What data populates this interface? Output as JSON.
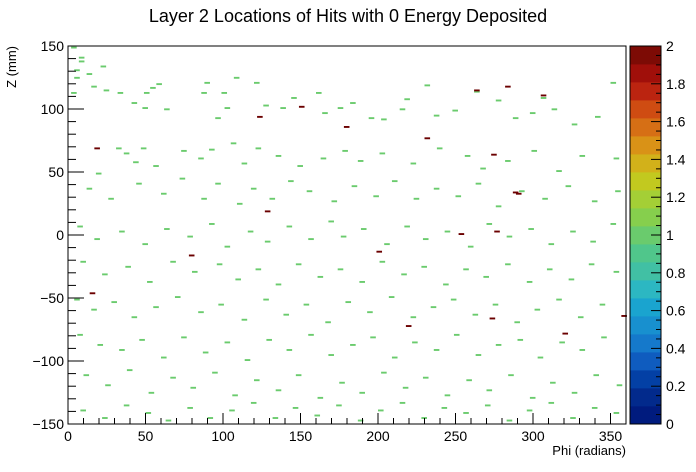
{
  "chart_data": {
    "type": "heatmap",
    "title": "Layer 2 Locations of Hits with 0 Energy Deposited",
    "xlabel": "Phi (radians)",
    "ylabel": "Z (mm)",
    "xlim": [
      0,
      360
    ],
    "ylim": [
      -150,
      150
    ],
    "x_ticks": [
      0,
      50,
      100,
      150,
      200,
      250,
      300,
      350
    ],
    "y_ticks": [
      -150,
      -100,
      -50,
      0,
      50,
      100,
      150
    ],
    "zlim": [
      0,
      2
    ],
    "z_ticks": [
      0,
      0.2,
      0.4,
      0.6,
      0.8,
      1,
      1.2,
      1.4,
      1.6,
      1.8,
      2
    ],
    "z_tick_labels": [
      "0",
      "0.2",
      "0.4",
      "0.6",
      "0.8",
      "1",
      "1.2",
      "1.4",
      "1.6",
      "1.8",
      "2"
    ],
    "bin_size": {
      "phi": 3.6,
      "z": 1.5
    },
    "colorbar": [
      "#001b7e",
      "#022a8c",
      "#0340a5",
      "#0f5cbf",
      "#1579cb",
      "#1890cf",
      "#1aa4cf",
      "#2cb7c2",
      "#41c0a4",
      "#50c68b",
      "#6acb6d",
      "#86cf4d",
      "#a4cf36",
      "#c2c91f",
      "#d2b11a",
      "#d99217",
      "#d66f15",
      "#cf4c12",
      "#bb2410",
      "#a00f0a",
      "#7d0b05"
    ],
    "bins": [
      [
        2,
        148,
        1
      ],
      [
        7,
        140,
        1
      ],
      [
        7,
        137,
        1
      ],
      [
        4,
        130,
        1
      ],
      [
        4,
        124,
        1
      ],
      [
        12,
        127,
        1
      ],
      [
        21,
        133,
        1
      ],
      [
        2,
        112,
        1
      ],
      [
        15,
        117,
        1
      ],
      [
        23,
        114,
        1
      ],
      [
        32,
        112,
        1
      ],
      [
        41,
        104,
        1
      ],
      [
        49,
        112,
        1
      ],
      [
        53,
        116,
        1
      ],
      [
        57,
        119,
        1
      ],
      [
        48,
        100,
        1
      ],
      [
        62,
        99,
        1
      ],
      [
        86,
        112,
        1
      ],
      [
        88,
        120,
        1
      ],
      [
        99,
        112,
        1
      ],
      [
        101,
        100,
        1
      ],
      [
        95,
        92,
        1
      ],
      [
        107,
        124,
        1
      ],
      [
        120,
        120,
        1
      ],
      [
        126,
        102,
        1
      ],
      [
        137,
        100,
        1
      ],
      [
        144,
        108,
        1
      ],
      [
        160,
        112,
        1
      ],
      [
        164,
        96,
        1
      ],
      [
        174,
        100,
        1
      ],
      [
        182,
        104,
        1
      ],
      [
        194,
        92,
        1
      ],
      [
        202,
        91,
        1
      ],
      [
        214,
        99,
        1
      ],
      [
        217,
        107,
        1
      ],
      [
        230,
        118,
        1
      ],
      [
        236,
        94,
        1
      ],
      [
        248,
        98,
        1
      ],
      [
        262,
        113,
        1
      ],
      [
        276,
        106,
        1
      ],
      [
        287,
        92,
        1
      ],
      [
        298,
        96,
        1
      ],
      [
        305,
        108,
        1
      ],
      [
        312,
        99,
        1
      ],
      [
        325,
        87,
        1
      ],
      [
        340,
        93,
        1
      ],
      [
        350,
        120,
        1
      ],
      [
        31,
        68,
        1
      ],
      [
        36,
        64,
        1
      ],
      [
        47,
        68,
        1
      ],
      [
        42,
        57,
        1
      ],
      [
        55,
        54,
        1
      ],
      [
        73,
        66,
        1
      ],
      [
        84,
        60,
        1
      ],
      [
        91,
        67,
        1
      ],
      [
        105,
        72,
        1
      ],
      [
        112,
        56,
        1
      ],
      [
        121,
        68,
        1
      ],
      [
        134,
        62,
        1
      ],
      [
        148,
        54,
        1
      ],
      [
        163,
        60,
        1
      ],
      [
        177,
        66,
        1
      ],
      [
        187,
        58,
        1
      ],
      [
        201,
        64,
        1
      ],
      [
        221,
        56,
        1
      ],
      [
        238,
        68,
        1
      ],
      [
        256,
        62,
        1
      ],
      [
        266,
        52,
        1
      ],
      [
        282,
        58,
        1
      ],
      [
        299,
        66,
        1
      ],
      [
        315,
        50,
        1
      ],
      [
        330,
        62,
        1
      ],
      [
        352,
        60,
        1
      ],
      [
        12,
        36,
        1
      ],
      [
        18,
        48,
        1
      ],
      [
        26,
        28,
        1
      ],
      [
        44,
        40,
        1
      ],
      [
        60,
        32,
        1
      ],
      [
        72,
        44,
        1
      ],
      [
        86,
        28,
        1
      ],
      [
        95,
        40,
        1
      ],
      [
        109,
        24,
        1
      ],
      [
        118,
        36,
        1
      ],
      [
        130,
        28,
        1
      ],
      [
        142,
        42,
        1
      ],
      [
        154,
        34,
        1
      ],
      [
        170,
        26,
        1
      ],
      [
        183,
        38,
        1
      ],
      [
        197,
        30,
        1
      ],
      [
        209,
        42,
        1
      ],
      [
        223,
        28,
        1
      ],
      [
        236,
        36,
        1
      ],
      [
        250,
        30,
        1
      ],
      [
        263,
        40,
        1
      ],
      [
        276,
        22,
        1
      ],
      [
        291,
        34,
        1
      ],
      [
        306,
        28,
        1
      ],
      [
        321,
        38,
        1
      ],
      [
        338,
        26,
        1
      ],
      [
        353,
        34,
        1
      ],
      [
        6,
        6,
        1
      ],
      [
        17,
        -4,
        1
      ],
      [
        33,
        2,
        1
      ],
      [
        48,
        -8,
        1
      ],
      [
        62,
        4,
        1
      ],
      [
        77,
        -2,
        1
      ],
      [
        91,
        8,
        1
      ],
      [
        101,
        -10,
        1
      ],
      [
        116,
        2,
        1
      ],
      [
        127,
        -6,
        1
      ],
      [
        141,
        6,
        1
      ],
      [
        155,
        -4,
        1
      ],
      [
        168,
        10,
        1
      ],
      [
        176,
        -2,
        1
      ],
      [
        189,
        4,
        1
      ],
      [
        204,
        -8,
        1
      ],
      [
        217,
        6,
        1
      ],
      [
        229,
        -4,
        1
      ],
      [
        243,
        2,
        1
      ],
      [
        258,
        -10,
        1
      ],
      [
        270,
        8,
        1
      ],
      [
        283,
        -2,
        1
      ],
      [
        297,
        4,
        1
      ],
      [
        310,
        -8,
        1
      ],
      [
        324,
        2,
        1
      ],
      [
        337,
        -6,
        1
      ],
      [
        350,
        8,
        1
      ],
      [
        8,
        -22,
        1
      ],
      [
        22,
        -32,
        1
      ],
      [
        37,
        -26,
        1
      ],
      [
        51,
        -38,
        1
      ],
      [
        66,
        -22,
        1
      ],
      [
        80,
        -30,
        1
      ],
      [
        96,
        -24,
        1
      ],
      [
        108,
        -36,
        1
      ],
      [
        121,
        -28,
        1
      ],
      [
        134,
        -40,
        1
      ],
      [
        147,
        -24,
        1
      ],
      [
        161,
        -34,
        1
      ],
      [
        174,
        -28,
        1
      ],
      [
        188,
        -38,
        1
      ],
      [
        201,
        -22,
        1
      ],
      [
        215,
        -32,
        1
      ],
      [
        228,
        -26,
        1
      ],
      [
        242,
        -40,
        1
      ],
      [
        255,
        -28,
        1
      ],
      [
        268,
        -34,
        1
      ],
      [
        282,
        -24,
        1
      ],
      [
        296,
        -38,
        1
      ],
      [
        309,
        -28,
        1
      ],
      [
        323,
        -36,
        1
      ],
      [
        336,
        -24,
        1
      ],
      [
        352,
        -30,
        1
      ],
      [
        4,
        -52,
        1
      ],
      [
        15,
        -60,
        1
      ],
      [
        28,
        -54,
        1
      ],
      [
        41,
        -66,
        1
      ],
      [
        55,
        -58,
        1
      ],
      [
        69,
        -50,
        1
      ],
      [
        84,
        -62,
        1
      ],
      [
        97,
        -56,
        1
      ],
      [
        112,
        -68,
        1
      ],
      [
        126,
        -52,
        1
      ],
      [
        139,
        -64,
        1
      ],
      [
        152,
        -56,
        1
      ],
      [
        166,
        -70,
        1
      ],
      [
        179,
        -54,
        1
      ],
      [
        193,
        -62,
        1
      ],
      [
        207,
        -50,
        1
      ],
      [
        221,
        -66,
        1
      ],
      [
        234,
        -58,
        1
      ],
      [
        247,
        -52,
        1
      ],
      [
        261,
        -64,
        1
      ],
      [
        274,
        -56,
        1
      ],
      [
        288,
        -70,
        1
      ],
      [
        301,
        -60,
        1
      ],
      [
        315,
        -52,
        1
      ],
      [
        329,
        -66,
        1
      ],
      [
        343,
        -56,
        1
      ],
      [
        6,
        -80,
        1
      ],
      [
        19,
        -88,
        1
      ],
      [
        33,
        -92,
        1
      ],
      [
        46,
        -84,
        1
      ],
      [
        60,
        -98,
        1
      ],
      [
        73,
        -82,
        1
      ],
      [
        87,
        -94,
        1
      ],
      [
        101,
        -86,
        1
      ],
      [
        114,
        -100,
        1
      ],
      [
        128,
        -84,
        1
      ],
      [
        141,
        -92,
        1
      ],
      [
        155,
        -80,
        1
      ],
      [
        168,
        -96,
        1
      ],
      [
        182,
        -88,
        1
      ],
      [
        195,
        -82,
        1
      ],
      [
        209,
        -98,
        1
      ],
      [
        222,
        -86,
        1
      ],
      [
        236,
        -92,
        1
      ],
      [
        249,
        -80,
        1
      ],
      [
        263,
        -96,
        1
      ],
      [
        276,
        -88,
        1
      ],
      [
        290,
        -84,
        1
      ],
      [
        303,
        -98,
        1
      ],
      [
        317,
        -86,
        1
      ],
      [
        330,
        -92,
        1
      ],
      [
        344,
        -82,
        1
      ],
      [
        10,
        -112,
        1
      ],
      [
        24,
        -120,
        1
      ],
      [
        38,
        -108,
        1
      ],
      [
        52,
        -126,
        1
      ],
      [
        66,
        -114,
        1
      ],
      [
        79,
        -122,
        1
      ],
      [
        93,
        -110,
        1
      ],
      [
        106,
        -128,
        1
      ],
      [
        120,
        -116,
        1
      ],
      [
        134,
        -124,
        1
      ],
      [
        147,
        -112,
        1
      ],
      [
        161,
        -130,
        1
      ],
      [
        175,
        -118,
        1
      ],
      [
        188,
        -126,
        1
      ],
      [
        202,
        -110,
        1
      ],
      [
        216,
        -122,
        1
      ],
      [
        229,
        -114,
        1
      ],
      [
        243,
        -128,
        1
      ],
      [
        257,
        -116,
        1
      ],
      [
        270,
        -124,
        1
      ],
      [
        284,
        -112,
        1
      ],
      [
        298,
        -130,
        1
      ],
      [
        311,
        -118,
        1
      ],
      [
        325,
        -126,
        1
      ],
      [
        339,
        -112,
        1
      ],
      [
        354,
        -120,
        1
      ],
      [
        8,
        -140,
        1
      ],
      [
        22,
        -146,
        1
      ],
      [
        36,
        -136,
        1
      ],
      [
        50,
        -142,
        1
      ],
      [
        63,
        -148,
        1
      ],
      [
        77,
        -138,
        1
      ],
      [
        90,
        -146,
        1
      ],
      [
        104,
        -140,
        1
      ],
      [
        118,
        -134,
        1
      ],
      [
        132,
        -146,
        1
      ],
      [
        145,
        -138,
        1
      ],
      [
        159,
        -144,
        1
      ],
      [
        173,
        -136,
        1
      ],
      [
        187,
        -148,
        1
      ],
      [
        200,
        -140,
        1
      ],
      [
        214,
        -134,
        1
      ],
      [
        228,
        -146,
        1
      ],
      [
        241,
        -138,
        1
      ],
      [
        255,
        -142,
        1
      ],
      [
        269,
        -136,
        1
      ],
      [
        283,
        -148,
        1
      ],
      [
        296,
        -140,
        1
      ],
      [
        310,
        -134,
        1
      ],
      [
        324,
        -146,
        1
      ],
      [
        338,
        -138,
        1
      ],
      [
        352,
        -142,
        1
      ],
      [
        17,
        68,
        2
      ],
      [
        78,
        -17,
        2
      ],
      [
        122,
        93,
        2
      ],
      [
        127,
        18,
        2
      ],
      [
        149,
        101,
        2
      ],
      [
        178,
        85,
        2
      ],
      [
        199,
        -14,
        2
      ],
      [
        218,
        -73,
        2
      ],
      [
        230,
        76,
        2
      ],
      [
        252,
        0,
        2
      ],
      [
        262,
        114,
        2
      ],
      [
        272,
        -67,
        2
      ],
      [
        273,
        63,
        2
      ],
      [
        275,
        2,
        2
      ],
      [
        282,
        117,
        2
      ],
      [
        287,
        33,
        2
      ],
      [
        289,
        32,
        2
      ],
      [
        305,
        110,
        2
      ],
      [
        319,
        -79,
        2
      ],
      [
        357,
        -65,
        2
      ],
      [
        14,
        -47,
        2
      ]
    ]
  }
}
